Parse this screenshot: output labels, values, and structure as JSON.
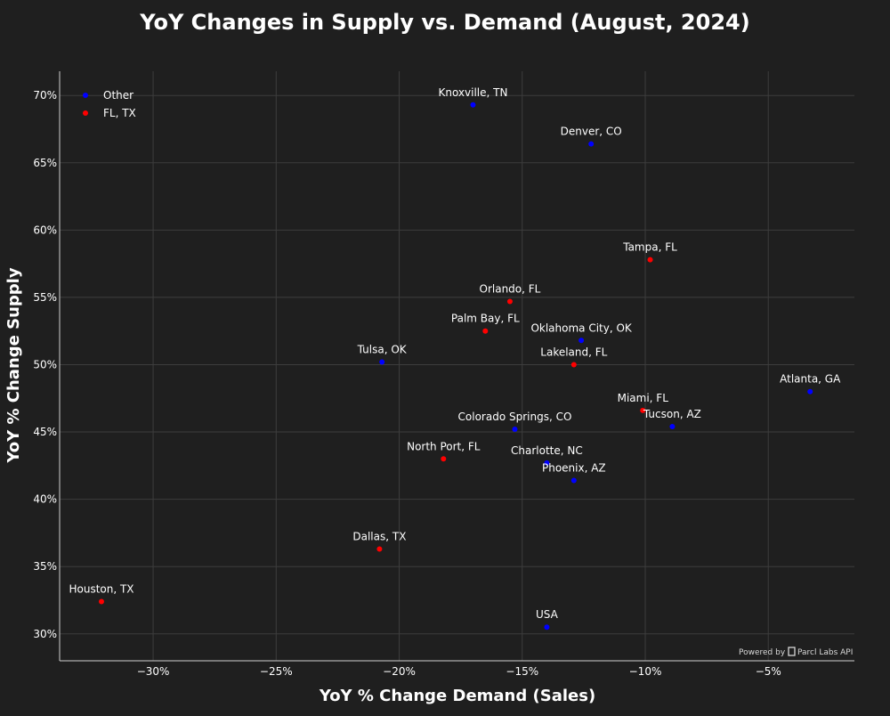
{
  "chart_data": {
    "type": "scatter",
    "title": "YoY Changes in Supply vs. Demand (August, 2024)",
    "xlabel": "YoY % Change Demand (Sales)",
    "ylabel": "YoY % Change Supply",
    "xlim": [
      -33.8,
      -1.5
    ],
    "ylim": [
      28.0,
      71.8
    ],
    "x_ticks": [
      -30,
      -25,
      -20,
      -15,
      -10,
      -5
    ],
    "x_tick_labels": [
      "−30%",
      "−25%",
      "−20%",
      "−15%",
      "−10%",
      "−5%"
    ],
    "y_ticks": [
      30,
      35,
      40,
      45,
      50,
      55,
      60,
      65,
      70
    ],
    "y_tick_labels": [
      "30%",
      "35%",
      "40%",
      "45%",
      "50%",
      "55%",
      "60%",
      "65%",
      "70%"
    ],
    "grid": true,
    "legend_position": "top-left",
    "series": [
      {
        "name": "Other",
        "color": "#0000ff",
        "points": [
          {
            "label": "Knoxville, TN",
            "x": -17.0,
            "y": 69.3
          },
          {
            "label": "Denver, CO",
            "x": -12.2,
            "y": 66.4
          },
          {
            "label": "Oklahoma City, OK",
            "x": -12.6,
            "y": 51.8
          },
          {
            "label": "Tulsa, OK",
            "x": -20.7,
            "y": 50.2
          },
          {
            "label": "Atlanta, GA",
            "x": -3.3,
            "y": 48.0
          },
          {
            "label": "Tucson, AZ",
            "x": -8.9,
            "y": 45.4
          },
          {
            "label": "Colorado Springs, CO",
            "x": -15.3,
            "y": 45.2
          },
          {
            "label": "Charlotte, NC",
            "x": -14.0,
            "y": 42.7
          },
          {
            "label": "Phoenix, AZ",
            "x": -12.9,
            "y": 41.4
          },
          {
            "label": "USA",
            "x": -14.0,
            "y": 30.5
          }
        ]
      },
      {
        "name": "FL, TX",
        "color": "#ff0000",
        "points": [
          {
            "label": "Tampa, FL",
            "x": -9.8,
            "y": 57.8
          },
          {
            "label": "Orlando, FL",
            "x": -15.5,
            "y": 54.7
          },
          {
            "label": "Palm Bay, FL",
            "x": -16.5,
            "y": 52.5
          },
          {
            "label": "Lakeland, FL",
            "x": -12.9,
            "y": 50.0
          },
          {
            "label": "Miami, FL",
            "x": -10.1,
            "y": 46.6
          },
          {
            "label": "North Port, FL",
            "x": -18.2,
            "y": 43.0
          },
          {
            "label": "Dallas, TX",
            "x": -20.8,
            "y": 36.3
          },
          {
            "label": "Houston, TX",
            "x": -32.1,
            "y": 32.4
          }
        ]
      }
    ]
  },
  "colors": {
    "background": "#1f1f1f",
    "text": "#ffffff",
    "grid": "#3d3d3d",
    "axis": "#cfcfcf"
  },
  "footer": {
    "powered_by": "Powered by",
    "brand": "Parcl Labs API"
  }
}
